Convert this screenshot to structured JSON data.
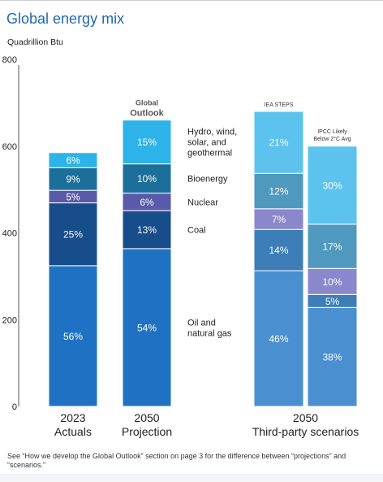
{
  "title": "Global energy mix",
  "unit_label": "Quadrillion Btu",
  "footnote": "See “How we develop the Global Outlook” section on page 3 for the difference between “projections” and “scenarios.”",
  "chart_data": {
    "type": "bar",
    "stacked": true,
    "ylim": [
      0,
      800
    ],
    "yticks": [
      0,
      200,
      400,
      600,
      800
    ],
    "categories": [
      "2023 Actuals",
      "2050 Projection",
      "2050 IEA STEPS",
      "2050 IPCC Likely Below 2°C Avg"
    ],
    "bars": [
      {
        "year": "2023",
        "caption": "Actuals",
        "header": "",
        "total": 585,
        "segments": [
          {
            "label": "56%",
            "value": 56
          },
          {
            "label": "25%",
            "value": 25
          },
          {
            "label": "5%",
            "value": 5
          },
          {
            "label": "9%",
            "value": 9
          },
          {
            "label": "6%",
            "value": 6
          }
        ]
      },
      {
        "year": "2050",
        "caption": "Projection",
        "header": "Global Outlook",
        "total": 660,
        "segments": [
          {
            "label": "54%",
            "value": 54
          },
          {
            "label": "13%",
            "value": 13
          },
          {
            "label": "6%",
            "value": 6
          },
          {
            "label": "10%",
            "value": 10
          },
          {
            "label": "15%",
            "value": 15
          }
        ]
      },
      {
        "year": "",
        "caption": "",
        "header": "IEA STEPS",
        "total": 680,
        "segments": [
          {
            "label": "46%",
            "value": 46
          },
          {
            "label": "14%",
            "value": 14
          },
          {
            "label": "7%",
            "value": 7
          },
          {
            "label": "12%",
            "value": 12
          },
          {
            "label": "21%",
            "value": 21
          }
        ]
      },
      {
        "year": "",
        "caption": "",
        "header": "IPCC Likely Below 2°C Avg",
        "total": 600,
        "segments": [
          {
            "label": "38%",
            "value": 38
          },
          {
            "label": "5%",
            "value": 5
          },
          {
            "label": "10%",
            "value": 10
          },
          {
            "label": "17%",
            "value": 17
          },
          {
            "label": "30%",
            "value": 30
          }
        ]
      }
    ],
    "group_label": {
      "year": "2050",
      "caption": "Third-party scenarios"
    },
    "legend": [
      "Oil and natural gas",
      "Coal",
      "Nuclear",
      "Bioenergy",
      "Hydro, wind, solar, and geothermal"
    ],
    "colors": {
      "solid": [
        "#1f72c3",
        "#174d8a",
        "#5a5aaa",
        "#1c6f9a",
        "#2db3ea"
      ],
      "light": [
        "#4a8fd0",
        "#3d7db8",
        "#8b87cd",
        "#4f99bf",
        "#5cc3ef"
      ]
    }
  }
}
